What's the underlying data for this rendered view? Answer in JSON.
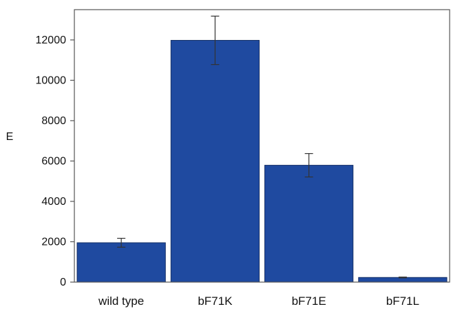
{
  "chart_data": {
    "type": "bar",
    "categories": [
      "wild type",
      "bF71K",
      "bF71E",
      "bF71L"
    ],
    "values": [
      1950,
      11980,
      5790,
      230
    ],
    "errors": [
      220,
      1200,
      580,
      20
    ],
    "title": "",
    "xlabel": "",
    "ylabel": "E",
    "ylim": [
      0,
      13500
    ],
    "yticks": [
      0,
      2000,
      4000,
      6000,
      8000,
      10000,
      12000
    ],
    "ytick_labels": [
      "0",
      "2000",
      "4000",
      "6000",
      "8000",
      "10000",
      "12000"
    ],
    "grid": false,
    "legend": "none",
    "colors": {
      "bar": "#1f4aa0",
      "bar_edge": "#152f66",
      "axis": "#555555",
      "error_bar": "#333333"
    }
  }
}
